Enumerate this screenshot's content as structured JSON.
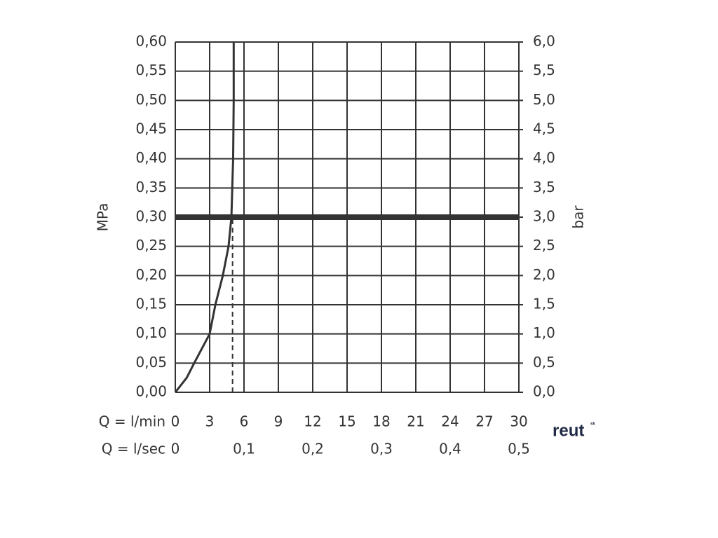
{
  "chart_data": {
    "type": "line",
    "y_label": "MPa",
    "y2_label": "bar",
    "x_row_label": "Q = l/min",
    "x2_row_label": "Q = l/sec",
    "logo": "reut",
    "logo_suffix": "sk",
    "x": [
      0,
      1,
      1.65,
      3,
      3.5,
      4.15,
      4.65,
      4.9,
      5.05,
      5.1,
      5.1
    ],
    "values": [
      0,
      0.025,
      0.05,
      0.1,
      0.15,
      0.2,
      0.25,
      0.3,
      0.4,
      0.5,
      0.6
    ],
    "color": "#333333",
    "hline": 0.3,
    "vline": 5,
    "grid": true,
    "xlim": [
      0,
      30
    ],
    "xticks": [
      0,
      3,
      6,
      9,
      12,
      15,
      18,
      21,
      24,
      27,
      30
    ],
    "x2lim": [
      0,
      0.5
    ],
    "x2ticks": [
      0,
      {
        "value": 0.1,
        "label": "0,1"
      },
      {
        "value": 0.2,
        "label": "0,2"
      },
      {
        "value": 0.3,
        "label": "0,3"
      },
      {
        "value": 0.4,
        "label": "0,4"
      },
      {
        "value": 0.5,
        "label": "0,5"
      }
    ],
    "ylim": [
      0,
      0.6
    ],
    "yticks": [
      {
        "value": 0,
        "label": "0,00"
      },
      {
        "value": 0.05,
        "label": "0,05"
      },
      {
        "value": 0.1,
        "label": "0,10"
      },
      {
        "value": 0.15,
        "label": "0,15"
      },
      {
        "value": 0.2,
        "label": "0,20"
      },
      {
        "value": 0.25,
        "label": "0,25"
      },
      {
        "value": 0.3,
        "label": "0,30"
      },
      {
        "value": 0.35,
        "label": "0,35"
      },
      {
        "value": 0.4,
        "label": "0,40"
      },
      {
        "value": 0.45,
        "label": "0,45"
      },
      {
        "value": 0.5,
        "label": "0,50"
      },
      {
        "value": 0.55,
        "label": "0,55"
      },
      {
        "value": 0.6,
        "label": "0,60"
      }
    ],
    "y2lim": [
      0,
      6
    ],
    "y2ticks": [
      {
        "value": 0,
        "label": "0,0"
      },
      {
        "value": 0.5,
        "label": "0,5"
      },
      {
        "value": 1,
        "label": "1,0"
      },
      {
        "value": 1.5,
        "label": "1,5"
      },
      {
        "value": 2,
        "label": "2,0"
      },
      {
        "value": 2.5,
        "label": "2,5"
      },
      {
        "value": 3,
        "label": "3,0"
      },
      {
        "value": 3.5,
        "label": "3,5"
      },
      {
        "value": 4,
        "label": "4,0"
      },
      {
        "value": 4.5,
        "label": "4,5"
      },
      {
        "value": 5,
        "label": "5,0"
      },
      {
        "value": 5.5,
        "label": "5,5"
      },
      {
        "value": 6,
        "label": "6,0"
      }
    ]
  }
}
